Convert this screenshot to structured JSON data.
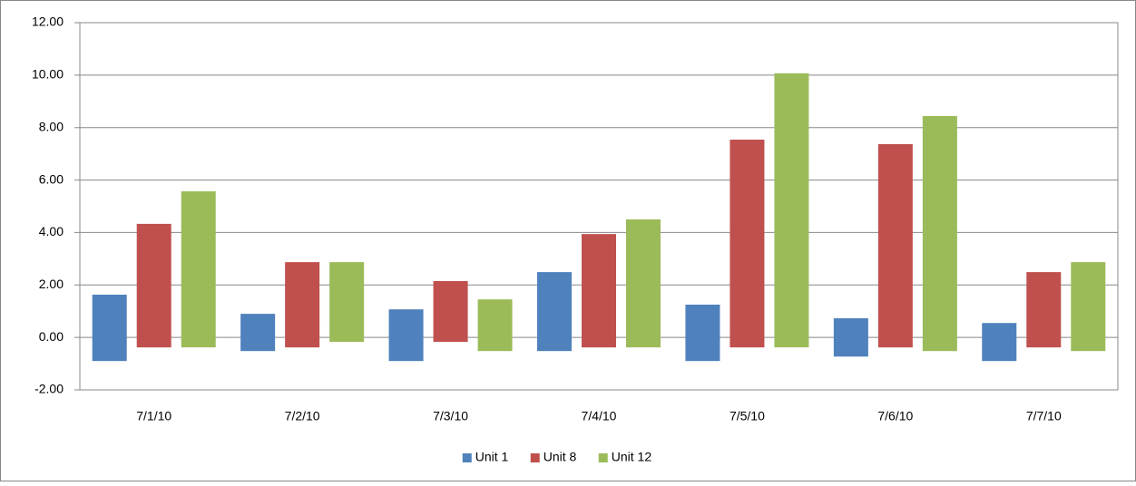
{
  "chart_data": {
    "type": "floating_bar",
    "categories": [
      "7/1/10",
      "7/2/10",
      "7/3/10",
      "7/4/10",
      "7/5/10",
      "7/6/10",
      "7/7/10"
    ],
    "series": [
      {
        "name": "Unit 1",
        "color": "#4f81bd",
        "low": [
          -0.9,
          -0.52,
          -0.9,
          -0.52,
          -0.9,
          -0.73,
          -0.9
        ],
        "high": [
          1.63,
          0.9,
          1.07,
          2.49,
          1.25,
          0.73,
          0.55
        ]
      },
      {
        "name": "Unit 8",
        "color": "#c0504d",
        "low": [
          -0.38,
          -0.38,
          -0.17,
          -0.38,
          -0.38,
          -0.38,
          -0.38
        ],
        "high": [
          4.33,
          2.87,
          2.15,
          3.94,
          7.54,
          7.37,
          2.49
        ]
      },
      {
        "name": "Unit 12",
        "color": "#9bbb59",
        "low": [
          -0.38,
          -0.17,
          -0.52,
          -0.38,
          -0.38,
          -0.52,
          -0.52
        ],
        "high": [
          5.57,
          2.87,
          1.45,
          4.5,
          10.07,
          8.44,
          2.87
        ]
      }
    ],
    "ylim": [
      -2,
      12
    ],
    "yticks": [
      {
        "value": -2,
        "label": "-2.00"
      },
      {
        "value": 0,
        "label": "0.00"
      },
      {
        "value": 2,
        "label": "2.00"
      },
      {
        "value": 4,
        "label": "4.00"
      },
      {
        "value": 6,
        "label": "6.00"
      },
      {
        "value": 8,
        "label": "8.00"
      },
      {
        "value": 10,
        "label": "10.00"
      },
      {
        "value": 12,
        "label": "12.00"
      }
    ],
    "grid": true,
    "legend": "bottom"
  }
}
